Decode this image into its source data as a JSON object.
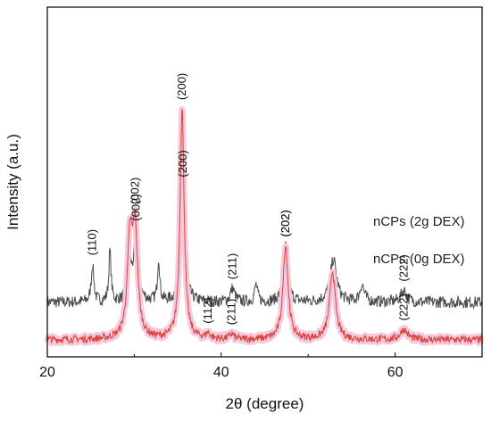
{
  "chart_data": {
    "type": "line",
    "xlabel": "2θ (degree)",
    "ylabel": "Intensity (a.u.)",
    "xlim": [
      20,
      70
    ],
    "x_ticks": [
      20,
      40,
      60
    ],
    "y_ticks_shown": false,
    "grid": false,
    "series": [
      {
        "name": "nCPs (2g DEX)",
        "color": "#4a4a4a",
        "baseline": 0.32,
        "noise": 0.035,
        "peaks": [
          {
            "x": 25.2,
            "h": 0.22,
            "w": 0.18
          },
          {
            "x": 27.2,
            "h": 0.3,
            "w": 0.15
          },
          {
            "x": 29.5,
            "h": 0.2,
            "w": 0.25
          },
          {
            "x": 30.2,
            "h": 0.4,
            "w": 0.3
          },
          {
            "x": 32.8,
            "h": 0.25,
            "w": 0.15
          },
          {
            "x": 35.6,
            "h": 0.68,
            "w": 0.28
          },
          {
            "x": 41.3,
            "h": 0.08,
            "w": 0.3
          },
          {
            "x": 44.0,
            "h": 0.1,
            "w": 0.2
          },
          {
            "x": 47.4,
            "h": 0.33,
            "w": 0.3
          },
          {
            "x": 52.9,
            "h": 0.25,
            "w": 0.45
          },
          {
            "x": 56.2,
            "h": 0.1,
            "w": 0.3
          },
          {
            "x": 61.0,
            "h": 0.07,
            "w": 0.4
          }
        ],
        "peak_labels": [
          {
            "text": "(110)",
            "x": 25.2
          },
          {
            "text": "(002)",
            "x": 30.2
          },
          {
            "text": "(200)",
            "x": 35.6
          },
          {
            "text": "(211)",
            "x": 41.3
          },
          {
            "text": "(202)",
            "x": 47.4
          },
          {
            "text": "(222)",
            "x": 61.0
          }
        ]
      },
      {
        "name": "nCPs (0g DEX)",
        "color": "#d9443a",
        "halo_color": "#f6c9dd",
        "baseline": 0.1,
        "noise": 0.022,
        "peaks": [
          {
            "x": 29.5,
            "h": 0.55,
            "w": 0.35
          },
          {
            "x": 30.1,
            "h": 0.6,
            "w": 0.35
          },
          {
            "x": 35.5,
            "h": 1.35,
            "w": 0.28
          },
          {
            "x": 38.5,
            "h": 0.03,
            "w": 0.3
          },
          {
            "x": 41.2,
            "h": 0.03,
            "w": 0.3
          },
          {
            "x": 47.4,
            "h": 0.55,
            "w": 0.35
          },
          {
            "x": 52.8,
            "h": 0.4,
            "w": 0.4
          },
          {
            "x": 61.0,
            "h": 0.06,
            "w": 0.5
          }
        ],
        "peak_labels": [
          {
            "text": "(002)",
            "x": 30.1
          },
          {
            "text": "(200)",
            "x": 35.5
          },
          {
            "text": "(112)",
            "x": 38.5
          },
          {
            "text": "(211)",
            "x": 41.2
          },
          {
            "text": "(202)",
            "x": 47.4
          },
          {
            "text": "(222)",
            "x": 61.0
          }
        ]
      }
    ]
  }
}
